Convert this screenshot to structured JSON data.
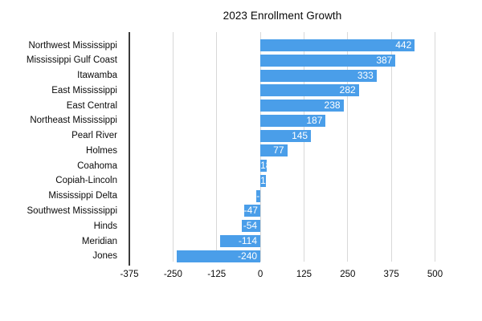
{
  "chart_data": {
    "type": "bar",
    "orientation": "horizontal",
    "title": "2023 Enrollment Growth",
    "categories": [
      "Northwest Mississippi",
      "Mississippi Gulf Coast",
      "Itawamba",
      "East Mississippi",
      "East Central",
      "Northeast Mississippi",
      "Pearl River",
      "Holmes",
      "Coahoma",
      "Copiah-Lincoln",
      "Mississippi Delta",
      "Southwest Mississippi",
      "Hinds",
      "Meridian",
      "Jones"
    ],
    "values": [
      442,
      387,
      333,
      282,
      238,
      187,
      145,
      77,
      18,
      17,
      -11,
      -47,
      -54,
      -114,
      -240
    ],
    "xlim": [
      -375,
      500
    ],
    "x_ticks": [
      -375,
      -250,
      -125,
      0,
      125,
      250,
      375,
      500
    ],
    "grid": true,
    "legend": false,
    "value_label_position": "inside-end",
    "colors": {
      "bar": "#4a9ee9",
      "value_label": "#ffffff",
      "gridline": "#d8d8d8",
      "axis_line": "#3a3a3a",
      "text": "#0a0a0a",
      "background": "#ffffff"
    }
  }
}
